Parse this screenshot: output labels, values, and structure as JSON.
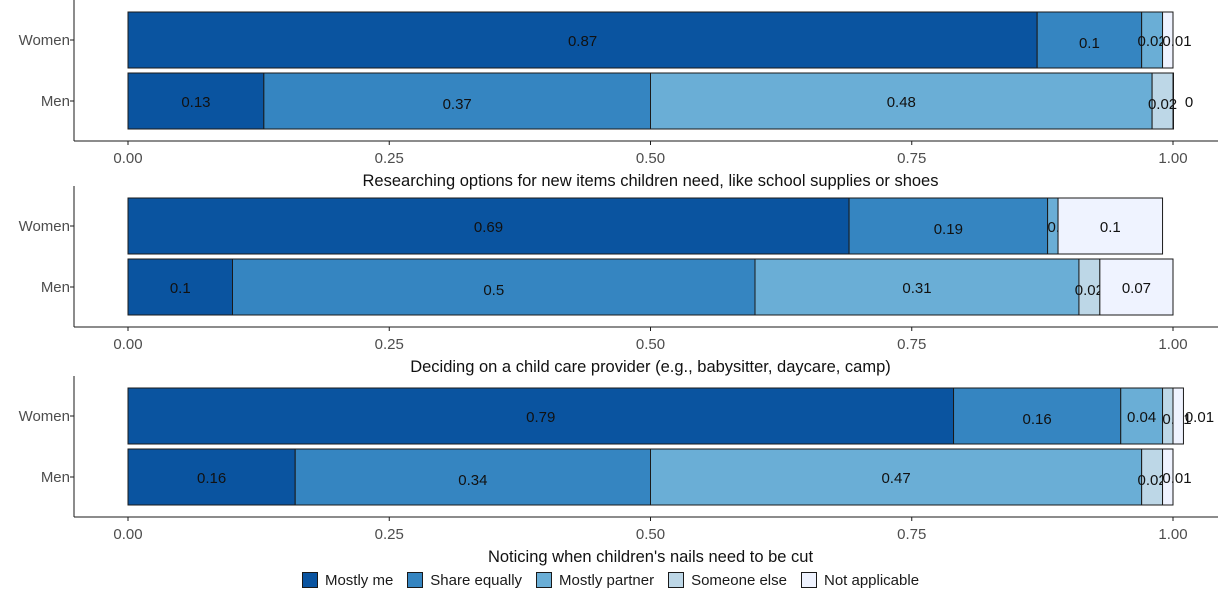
{
  "colors": {
    "Mostly me": "#0a54a0",
    "Share equally": "#3585c1",
    "Mostly partner": "#6aaed6",
    "Someone else": "#bdd7e7",
    "Not applicable": "#eff3ff"
  },
  "legend": {
    "items": [
      "Mostly me",
      "Share equally",
      "Mostly partner",
      "Someone else",
      "Not applicable"
    ]
  },
  "chart_data": [
    {
      "type": "bar",
      "orientation": "horizontal",
      "stacked": true,
      "xlabel": "Researching options for new items children need, like school supplies or shoes",
      "ylabel": "",
      "xlim": [
        0,
        1
      ],
      "xticks": [
        "0.00",
        "0.25",
        "0.50",
        "0.75",
        "1.00"
      ],
      "categories": [
        "Women",
        "Men"
      ],
      "series": [
        {
          "name": "Mostly me",
          "values": [
            0.87,
            0.13
          ]
        },
        {
          "name": "Share equally",
          "values": [
            0.1,
            0.37
          ]
        },
        {
          "name": "Mostly partner",
          "values": [
            0.02,
            0.48
          ]
        },
        {
          "name": "Someone else",
          "values": [
            0.0,
            0.02
          ]
        },
        {
          "name": "Not applicable",
          "values": [
            0.01,
            0.0
          ]
        }
      ],
      "labels": [
        [
          "0.87",
          "0.1",
          "0.02",
          "0",
          "0.01"
        ],
        [
          "0.13",
          "0.37",
          "0.48",
          "0.02",
          "0"
        ]
      ],
      "grid": false,
      "legend": "bottom"
    },
    {
      "type": "bar",
      "orientation": "horizontal",
      "stacked": true,
      "xlabel": "Deciding on a child care provider  (e.g., babysitter, daycare, camp)",
      "ylabel": "",
      "xlim": [
        0,
        1
      ],
      "xticks": [
        "0.00",
        "0.25",
        "0.50",
        "0.75",
        "1.00"
      ],
      "categories": [
        "Women",
        "Men"
      ],
      "series": [
        {
          "name": "Mostly me",
          "values": [
            0.69,
            0.1
          ]
        },
        {
          "name": "Share equally",
          "values": [
            0.19,
            0.5
          ]
        },
        {
          "name": "Mostly partner",
          "values": [
            0.01,
            0.31
          ]
        },
        {
          "name": "Someone else",
          "values": [
            0.0,
            0.02
          ]
        },
        {
          "name": "Not applicable",
          "values": [
            0.1,
            0.07
          ]
        }
      ],
      "labels": [
        [
          "0.69",
          "0.19",
          "0.01",
          "0",
          "0.1"
        ],
        [
          "0.1",
          "0.5",
          "0.31",
          "0.02",
          "0.07"
        ]
      ],
      "grid": false,
      "legend": "bottom"
    },
    {
      "type": "bar",
      "orientation": "horizontal",
      "stacked": true,
      "xlabel": "Noticing when children's nails need to be cut",
      "ylabel": "",
      "xlim": [
        0,
        1
      ],
      "xticks": [
        "0.00",
        "0.25",
        "0.50",
        "0.75",
        "1.00"
      ],
      "categories": [
        "Women",
        "Men"
      ],
      "series": [
        {
          "name": "Mostly me",
          "values": [
            0.79,
            0.16
          ]
        },
        {
          "name": "Share equally",
          "values": [
            0.16,
            0.34
          ]
        },
        {
          "name": "Mostly partner",
          "values": [
            0.04,
            0.47
          ]
        },
        {
          "name": "Someone else",
          "values": [
            0.01,
            0.02
          ]
        },
        {
          "name": "Not applicable",
          "values": [
            0.01,
            0.01
          ]
        }
      ],
      "labels": [
        [
          "0.79",
          "0.16",
          "0.04",
          "0.01",
          "0.01"
        ],
        [
          "0.16",
          "0.34",
          "0.47",
          "0.02",
          "0.01"
        ]
      ],
      "grid": false,
      "legend": "bottom"
    }
  ]
}
